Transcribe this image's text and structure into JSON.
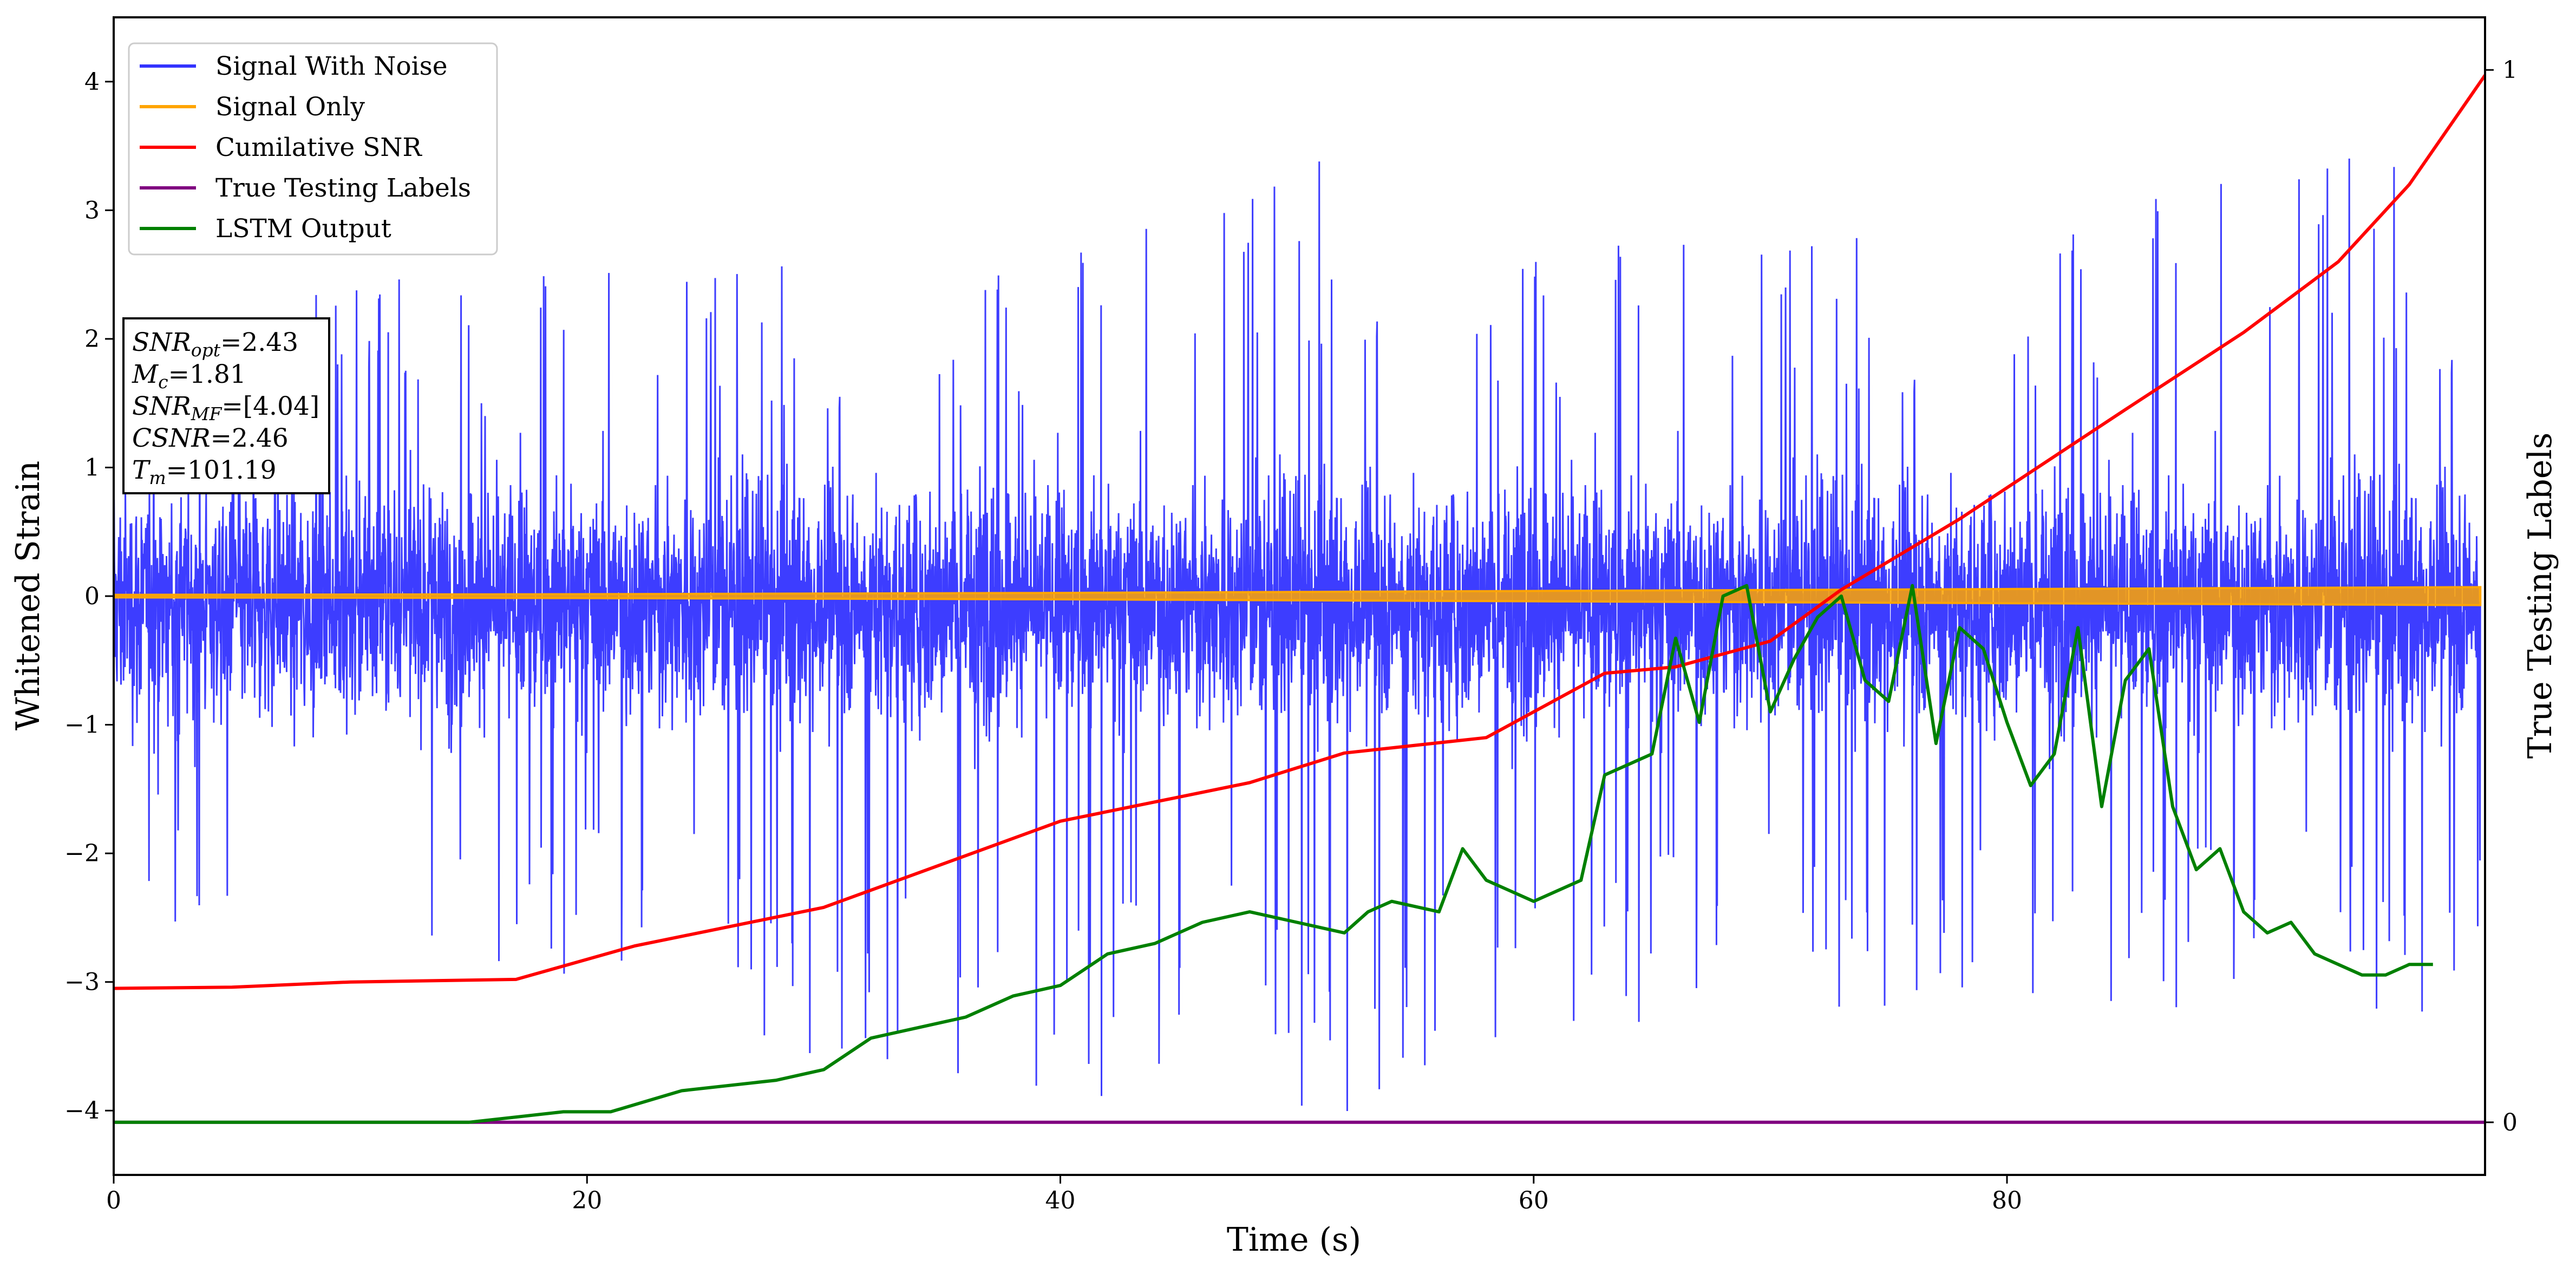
{
  "chart_data": {
    "type": "line",
    "xlabel": "Time (s)",
    "ylabel": "Whitened Strain",
    "y2label": "True Testing Labels",
    "xlim": [
      0,
      100.2
    ],
    "ylim": [
      -4.5,
      4.5
    ],
    "y2lim": [
      -0.05,
      1.05
    ],
    "xticks": [
      0,
      20,
      40,
      60,
      80
    ],
    "yticks": [
      -4,
      -3,
      -2,
      -1,
      0,
      1,
      2,
      3,
      4
    ],
    "y2ticks": [
      0,
      1
    ],
    "legend_position": "upper-left",
    "legend": [
      {
        "label": "Signal With Noise",
        "color": "#3333ff"
      },
      {
        "label": "Signal Only",
        "color": "#ffa500"
      },
      {
        "label": "Cumilative SNR",
        "color": "#ff0000"
      },
      {
        "label": "True Testing Labels",
        "color": "#800080"
      },
      {
        "label": "LSTM Output",
        "color": "#008000"
      }
    ],
    "annotation": [
      {
        "sym": "SNR",
        "sub": "opt",
        "rest": "=2.43"
      },
      {
        "sym": "M",
        "sub": "c",
        "rest": "=1.81"
      },
      {
        "sym": "SNR",
        "sub": "MF",
        "rest": "=[4.04]"
      },
      {
        "sym": "CSNR",
        "sub": "",
        "rest": "=2.46"
      },
      {
        "sym": "T",
        "sub": "m",
        "rest": "=101.19"
      }
    ],
    "series": [
      {
        "name": "Signal With Noise",
        "axis": "left",
        "color": "#3333ff",
        "style": "noise",
        "envelope_upper": [
          [
            0,
            2.3
          ],
          [
            20,
            2.6
          ],
          [
            40,
            2.7
          ],
          [
            54,
            3.7
          ],
          [
            60,
            2.8
          ],
          [
            80,
            2.9
          ],
          [
            95,
            3.6
          ],
          [
            100,
            3.0
          ]
        ],
        "envelope_lower": [
          [
            0,
            -2.5
          ],
          [
            20,
            -3.0
          ],
          [
            32,
            -3.8
          ],
          [
            53,
            -4.1
          ],
          [
            60,
            -3.4
          ],
          [
            80,
            -3.2
          ],
          [
            98,
            -3.3
          ],
          [
            100,
            -2.8
          ]
        ]
      },
      {
        "name": "Signal Only",
        "axis": "left",
        "color": "#ffa500",
        "x": [
          0,
          20,
          40,
          60,
          80,
          100
        ],
        "amplitude": [
          0.01,
          0.015,
          0.025,
          0.04,
          0.055,
          0.07
        ]
      },
      {
        "name": "Cumilative SNR",
        "axis": "left",
        "color": "#ff0000",
        "x": [
          0,
          5,
          10,
          17,
          22,
          30,
          40,
          48,
          52,
          58,
          63,
          66,
          70,
          73,
          78,
          85,
          90,
          94,
          97,
          100.2
        ],
        "y": [
          -3.05,
          -3.04,
          -3.0,
          -2.98,
          -2.72,
          -2.42,
          -1.75,
          -1.45,
          -1.22,
          -1.1,
          -0.6,
          -0.55,
          -0.35,
          0.05,
          0.6,
          1.45,
          2.05,
          2.6,
          3.2,
          4.05
        ]
      },
      {
        "name": "True Testing Labels",
        "axis": "right",
        "color": "#800080",
        "x": [
          0,
          100.2
        ],
        "y": [
          0,
          0
        ]
      },
      {
        "name": "LSTM Output",
        "axis": "right",
        "color": "#008000",
        "x": [
          0,
          15,
          19,
          21,
          24,
          28,
          30,
          32,
          34,
          36,
          38,
          40,
          42,
          44,
          46,
          48,
          50,
          52,
          53,
          54,
          56,
          57,
          58,
          60,
          62,
          63,
          64,
          65,
          66,
          67,
          68,
          69,
          70,
          71,
          72,
          73,
          74,
          75,
          76,
          77,
          78,
          79,
          80,
          81,
          82,
          83,
          84,
          85,
          86,
          87,
          88,
          89,
          90,
          91,
          92,
          93,
          94,
          95,
          96,
          97,
          98
        ],
        "y": [
          0.0,
          0.0,
          0.01,
          0.01,
          0.03,
          0.04,
          0.05,
          0.08,
          0.09,
          0.1,
          0.12,
          0.13,
          0.16,
          0.17,
          0.19,
          0.2,
          0.19,
          0.18,
          0.2,
          0.21,
          0.2,
          0.26,
          0.23,
          0.21,
          0.23,
          0.33,
          0.34,
          0.35,
          0.46,
          0.38,
          0.5,
          0.51,
          0.39,
          0.44,
          0.48,
          0.5,
          0.42,
          0.4,
          0.51,
          0.36,
          0.47,
          0.45,
          0.38,
          0.32,
          0.35,
          0.47,
          0.3,
          0.42,
          0.45,
          0.3,
          0.24,
          0.26,
          0.2,
          0.18,
          0.19,
          0.16,
          0.15,
          0.14,
          0.14,
          0.15,
          0.15
        ]
      }
    ]
  }
}
